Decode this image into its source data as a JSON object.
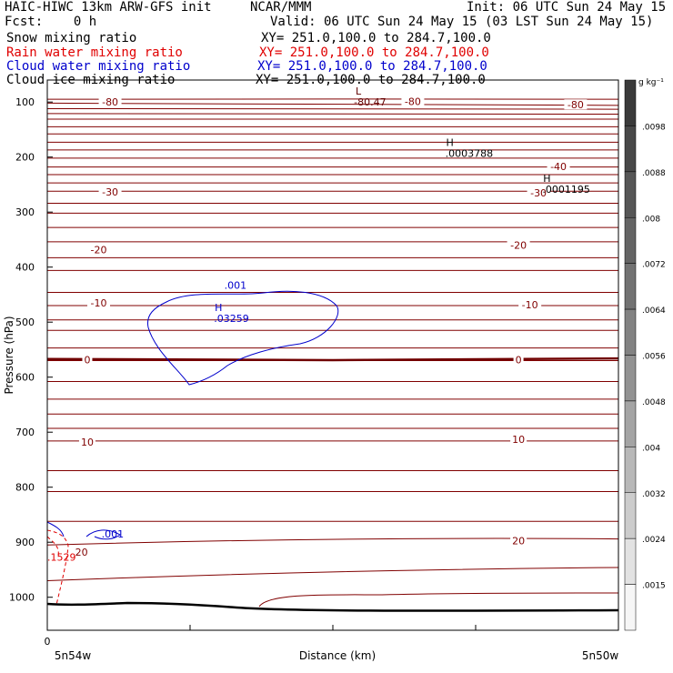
{
  "header": {
    "line1_left": "HAIC-HIWC 13km ARW-GFS init",
    "line1_mid": "NCAR/MMM",
    "line1_right": "Init: 06 UTC Sun 24 May 15",
    "line2_left": "Fcst:    0 h",
    "line2_right": "Valid: 06 UTC Sun 24 May 15 (03 LST Sun 24 May 15)",
    "fields": [
      {
        "name": "Snow mixing ratio",
        "xy": "XY= 251.0,100.0 to 284.7,100.0",
        "color": "#000000"
      },
      {
        "name": "Rain water mixing ratio",
        "xy": "XY= 251.0,100.0 to 284.7,100.0",
        "color": "#e00000"
      },
      {
        "name": "Cloud water mixing ratio",
        "xy": "XY= 251.0,100.0 to 284.7,100.0",
        "color": "#0000cc"
      },
      {
        "name": "Cloud ice mixing ratio",
        "xy": "XY= 251.0,100.0 to 284.7,100.0",
        "color": "#000000"
      }
    ]
  },
  "chart_data": {
    "type": "contour cross-section",
    "ylabel": "Pressure (hPa)",
    "xlabel": "Distance (km)",
    "x_left_label": "5n54w",
    "x_right_label": "5n50w",
    "x_origin_label": "0",
    "y_ticks": [
      100,
      200,
      300,
      400,
      500,
      600,
      700,
      800,
      900,
      1000
    ],
    "ylim": [
      1060,
      60
    ],
    "temperature_labels": [
      {
        "text": "-80",
        "x": 0.11,
        "p": 100
      },
      {
        "text": "-80",
        "x": 0.64,
        "p": 99
      },
      {
        "text": "-80",
        "x": 0.925,
        "p": 105
      },
      {
        "text": "-40",
        "x": 0.895,
        "p": 217
      },
      {
        "text": "-30",
        "x": 0.11,
        "p": 263
      },
      {
        "text": "-30",
        "x": 0.86,
        "p": 265
      },
      {
        "text": "-20",
        "x": 0.09,
        "p": 368
      },
      {
        "text": "-20",
        "x": 0.825,
        "p": 360
      },
      {
        "text": "-10",
        "x": 0.09,
        "p": 465
      },
      {
        "text": "-10",
        "x": 0.845,
        "p": 468
      },
      {
        "text": "0",
        "x": 0.07,
        "p": 568
      },
      {
        "text": "0",
        "x": 0.825,
        "p": 568
      },
      {
        "text": "10",
        "x": 0.07,
        "p": 718
      },
      {
        "text": "10",
        "x": 0.825,
        "p": 713
      },
      {
        "text": "20",
        "x": 0.06,
        "p": 918
      },
      {
        "text": "20",
        "x": 0.825,
        "p": 897
      }
    ],
    "extrema": [
      {
        "type": "L",
        "value": "-80.47",
        "x": 0.54,
        "p": 96,
        "color": "#600000"
      },
      {
        "type": "H",
        "value": ".0003788",
        "x": 0.7,
        "p": 190,
        "color": "#000000"
      },
      {
        "type": "H",
        "value": ".0001195",
        "x": 0.87,
        "p": 255,
        "color": "#000000"
      },
      {
        "type": "H",
        "value": ".03259",
        "x": 0.295,
        "p": 490,
        "color": "#0000cc"
      }
    ],
    "contour_labels": [
      {
        "text": ".001",
        "x": 0.31,
        "p": 433,
        "color": "#0000cc"
      },
      {
        "text": ".001",
        "x": 0.095,
        "p": 885,
        "color": "#0000cc"
      },
      {
        "text": ".1529",
        "x": 0.0,
        "p": 927,
        "color": "#e00000"
      }
    ],
    "colorbar": {
      "unit": "g kg⁻¹",
      "labels": [
        ".0098",
        ".0088",
        ".008",
        ".0072",
        ".0064",
        ".0056",
        ".0048",
        ".004",
        ".0032",
        ".0024",
        ".0015"
      ],
      "colors": [
        "#3a3a3a",
        "#484848",
        "#565656",
        "#646464",
        "#727272",
        "#828282",
        "#929292",
        "#a4a4a4",
        "#b8b8b8",
        "#cccccc",
        "#e2e2e2",
        "#f6f6f6"
      ]
    },
    "isotherm_color": "#800000",
    "freezing_color": "#700000"
  }
}
